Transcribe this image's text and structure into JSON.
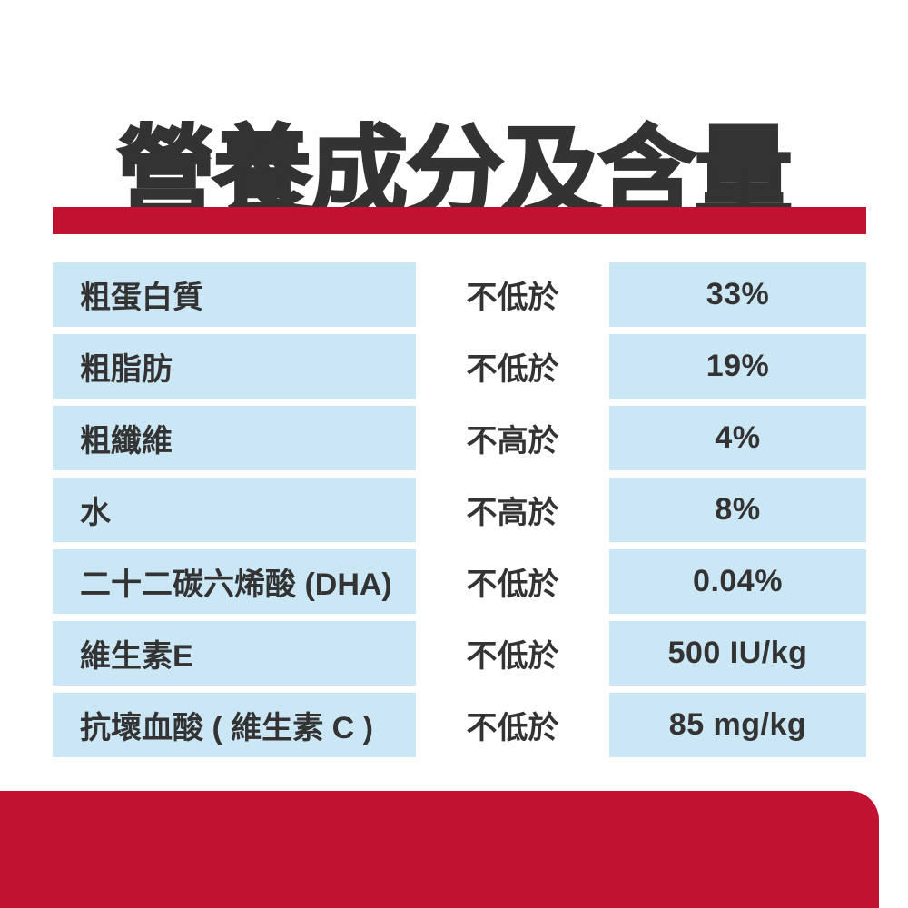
{
  "page": {
    "title": "營養成分及含量"
  },
  "colors": {
    "brand_red": "#c21231",
    "cell_blue": "#cbe6f4",
    "text_dark": "#333333"
  },
  "table": {
    "rows": [
      {
        "nutrient": "粗蛋白質",
        "condition": "不低於",
        "value": "33%"
      },
      {
        "nutrient": "粗脂肪",
        "condition": "不低於",
        "value": "19%"
      },
      {
        "nutrient": "粗纖維",
        "condition": "不高於",
        "value": "4%"
      },
      {
        "nutrient": "水",
        "condition": "不高於",
        "value": "8%"
      },
      {
        "nutrient": "二十二碳六烯酸 (DHA)",
        "condition": "不低於",
        "value": "0.04%"
      },
      {
        "nutrient": "維生素E",
        "condition": "不低於",
        "value": "500 IU/kg"
      },
      {
        "nutrient": "抗壞血酸 ( 維生素 C )",
        "condition": "不低於",
        "value": "85 mg/kg"
      }
    ]
  }
}
